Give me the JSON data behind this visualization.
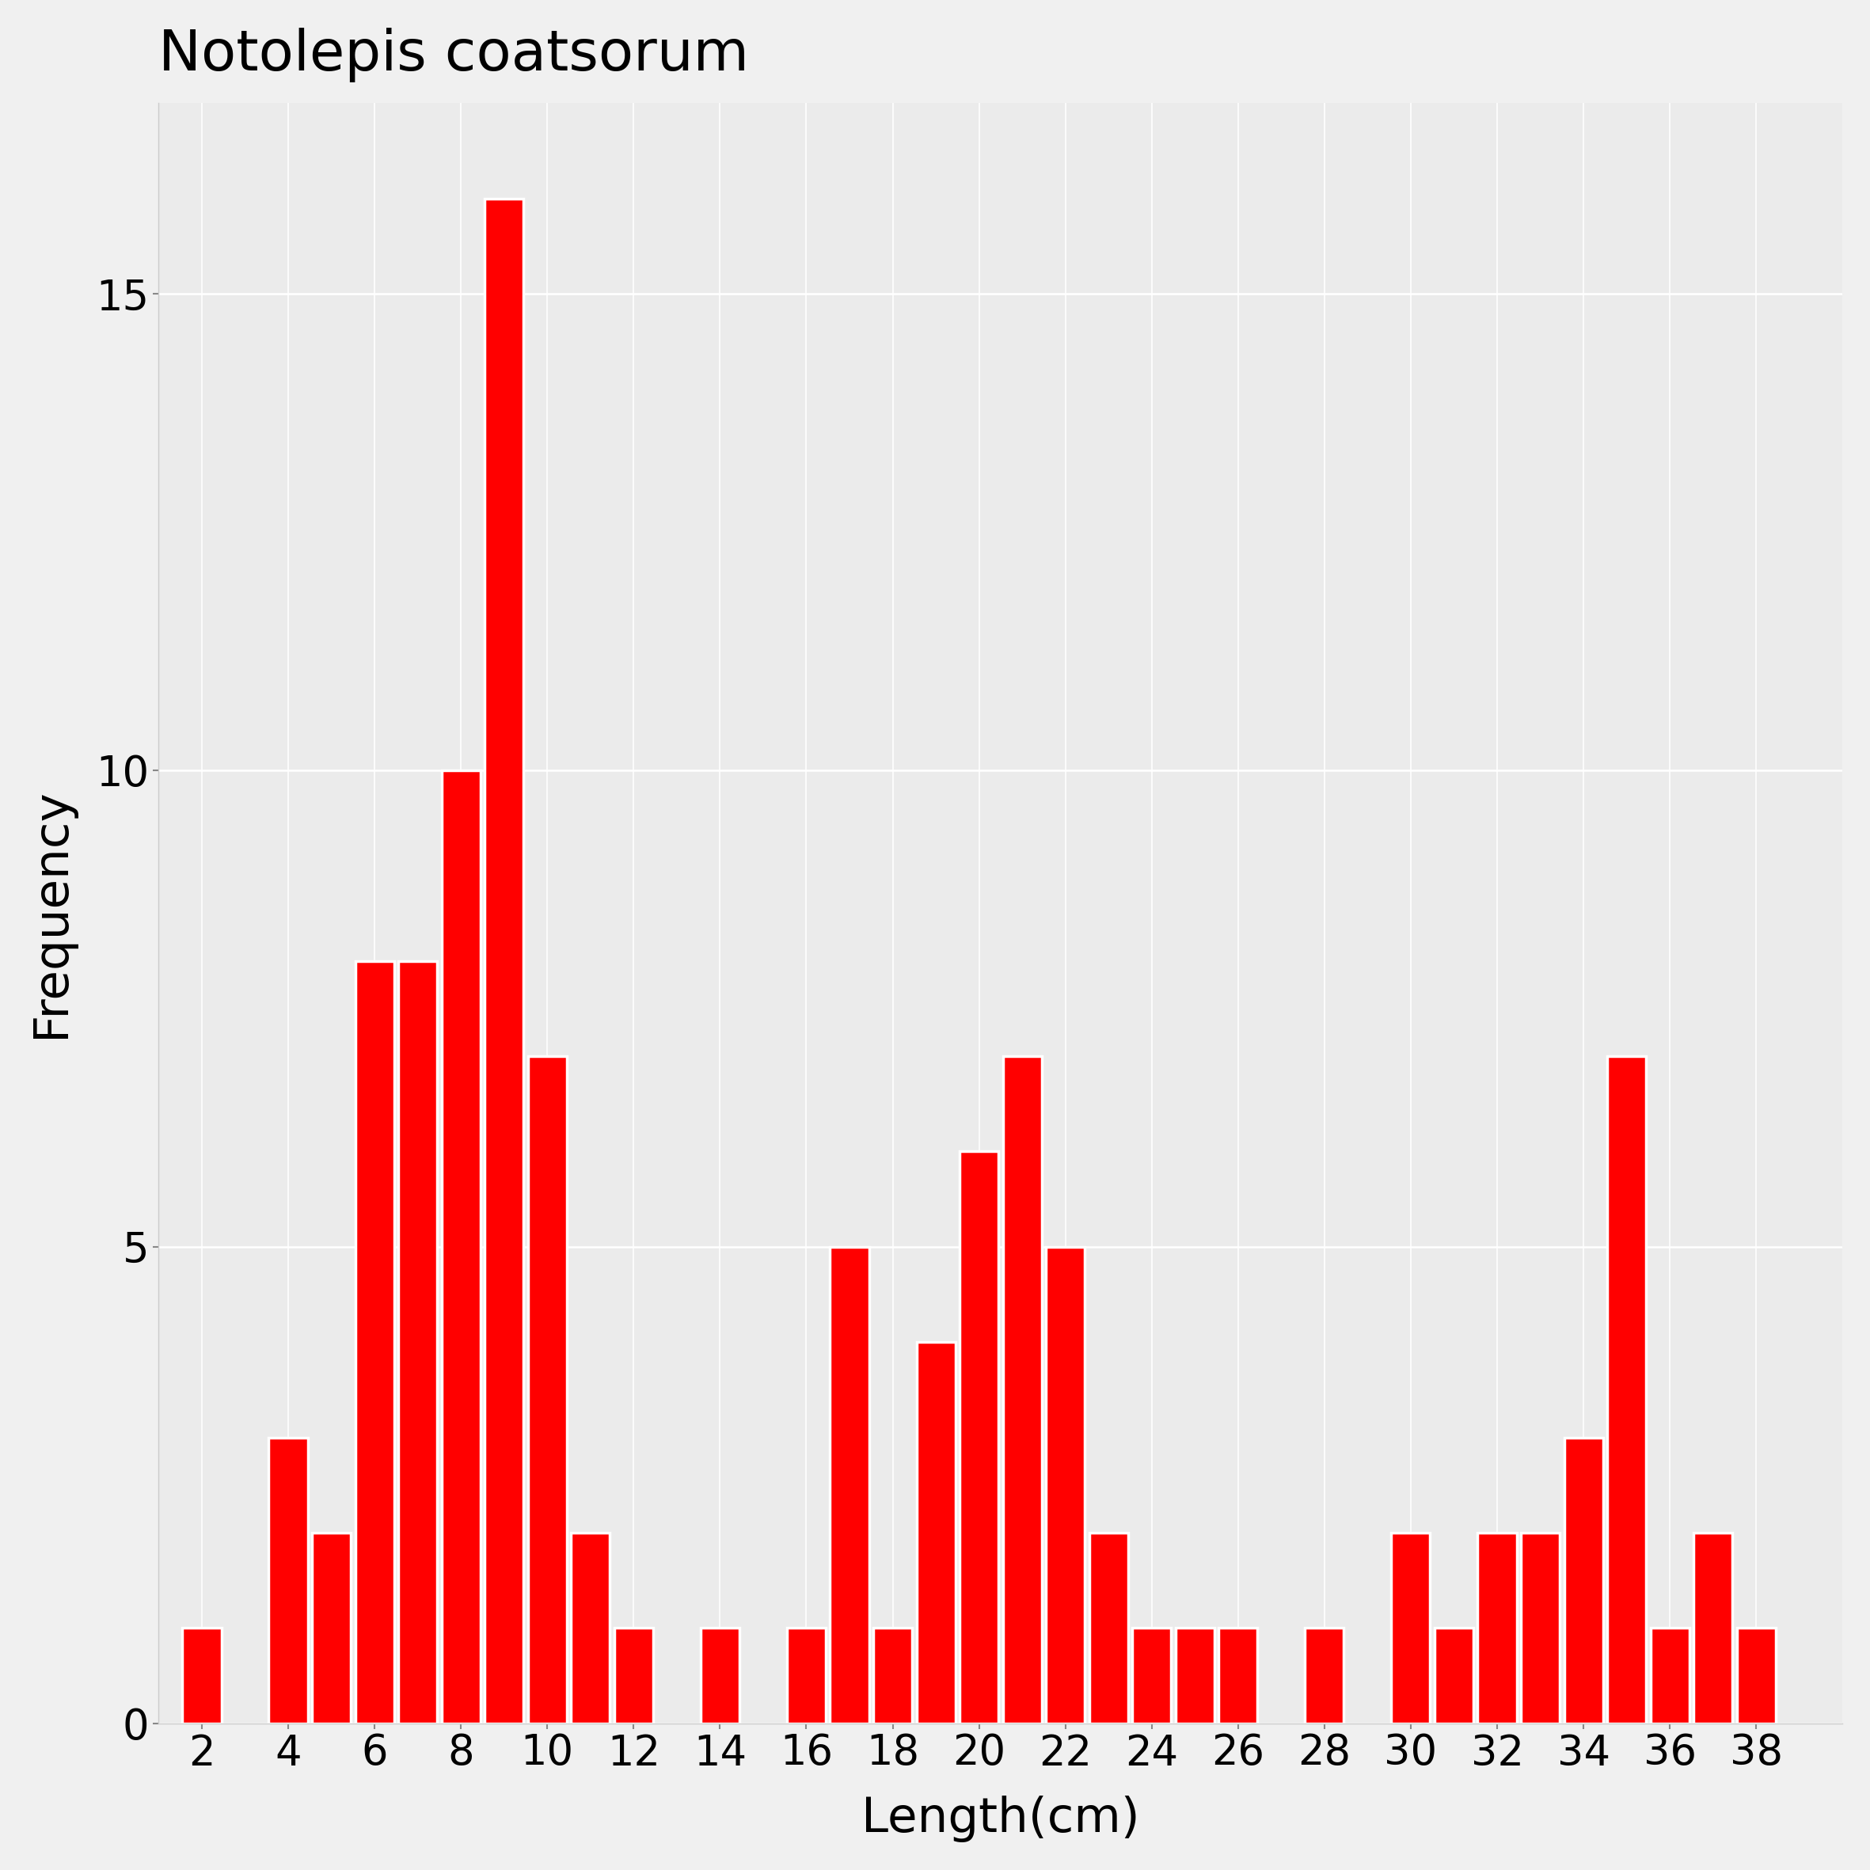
{
  "title": "Notolepis coatsorum",
  "xlabel": "Length(cm)",
  "ylabel": "Frequency",
  "bar_color": "#FF0000",
  "background_color": "#EBEBEB",
  "plot_bg_color": "#EBEBEB",
  "outer_bg_color": "#F0F0F0",
  "bar_edge_color": "white",
  "xlim": [
    1,
    40
  ],
  "ylim": [
    0,
    17
  ],
  "yticks": [
    0,
    5,
    10,
    15
  ],
  "xticks": [
    2,
    4,
    6,
    8,
    10,
    12,
    14,
    16,
    18,
    20,
    22,
    24,
    26,
    28,
    30,
    32,
    34,
    36,
    38
  ],
  "bar_positions": [
    2,
    3,
    4,
    5,
    6,
    7,
    8,
    9,
    10,
    11,
    12,
    13,
    14,
    15,
    16,
    17,
    18,
    19,
    20,
    21,
    22,
    23,
    24,
    25,
    26,
    27,
    28,
    29,
    30,
    31,
    32,
    33,
    34,
    35,
    36,
    37,
    38
  ],
  "counts": [
    1,
    0,
    3,
    2,
    8,
    8,
    10,
    16,
    7,
    2,
    1,
    0,
    1,
    0,
    1,
    5,
    1,
    4,
    6,
    7,
    5,
    2,
    1,
    1,
    1,
    0,
    1,
    0,
    2,
    1,
    2,
    2,
    3,
    7,
    1,
    2,
    1
  ],
  "title_fontsize": 52,
  "axis_label_fontsize": 44,
  "tick_fontsize": 38,
  "bar_width": 0.9
}
